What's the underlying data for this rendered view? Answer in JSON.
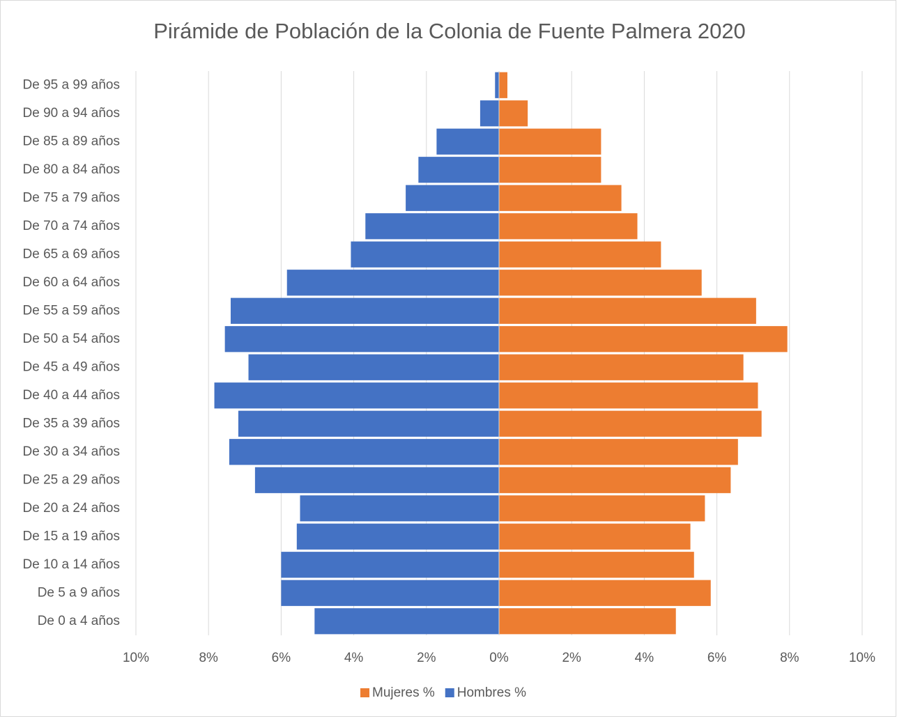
{
  "chart_data": {
    "type": "bar",
    "orientation": "horizontal",
    "title": "Pirámide de Población de la Colonia de Fuente Palmera 2020",
    "categories": [
      "De 95 a 99 años",
      "De 90 a 94 años",
      "De 85 a 89 años",
      "De 80 a 84 años",
      "De 75 a 79 años",
      "De 70 a 74 años",
      "De 65 a 69 años",
      "De 60 a 64 años",
      "De 55 a 59 años",
      "De 50 a 54 años",
      "De 45 a 49 años",
      "De 40 a 44 años",
      "De 35 a 39 años",
      "De 30 a 34 años",
      "De 25 a 29 años",
      "De 20 a 24 años",
      "De 15 a 19 años",
      "De 10 a 14 años",
      "De 5 a 9 años",
      "De 0 a 4 años"
    ],
    "series": [
      {
        "name": "Mujeres %",
        "color": "#ed7d31",
        "values": [
          0.23,
          0.79,
          2.81,
          2.81,
          3.37,
          3.81,
          4.46,
          5.58,
          7.08,
          7.94,
          6.73,
          7.13,
          7.23,
          6.58,
          6.38,
          5.67,
          5.27,
          5.37,
          5.83,
          4.87
        ]
      },
      {
        "name": "Hombres %",
        "color": "#4472c4",
        "values": [
          -0.11,
          -0.52,
          -1.72,
          -2.22,
          -2.57,
          -3.68,
          -4.08,
          -5.84,
          -7.39,
          -7.55,
          -6.9,
          -7.84,
          -7.18,
          -7.43,
          -6.72,
          -5.48,
          -5.57,
          -6.0,
          -6.0,
          -5.08
        ]
      }
    ],
    "xlim": [
      -10,
      10
    ],
    "xticks": [
      {
        "value": -10,
        "label": "10%"
      },
      {
        "value": -8,
        "label": "8%"
      },
      {
        "value": -6,
        "label": "6%"
      },
      {
        "value": -4,
        "label": "4%"
      },
      {
        "value": -2,
        "label": "2%"
      },
      {
        "value": 0,
        "label": "0%"
      },
      {
        "value": 2,
        "label": "2%"
      },
      {
        "value": 4,
        "label": "4%"
      },
      {
        "value": 6,
        "label": "6%"
      },
      {
        "value": 8,
        "label": "8%"
      },
      {
        "value": 10,
        "label": "10%"
      }
    ],
    "grid": true,
    "legend": "bottom"
  }
}
